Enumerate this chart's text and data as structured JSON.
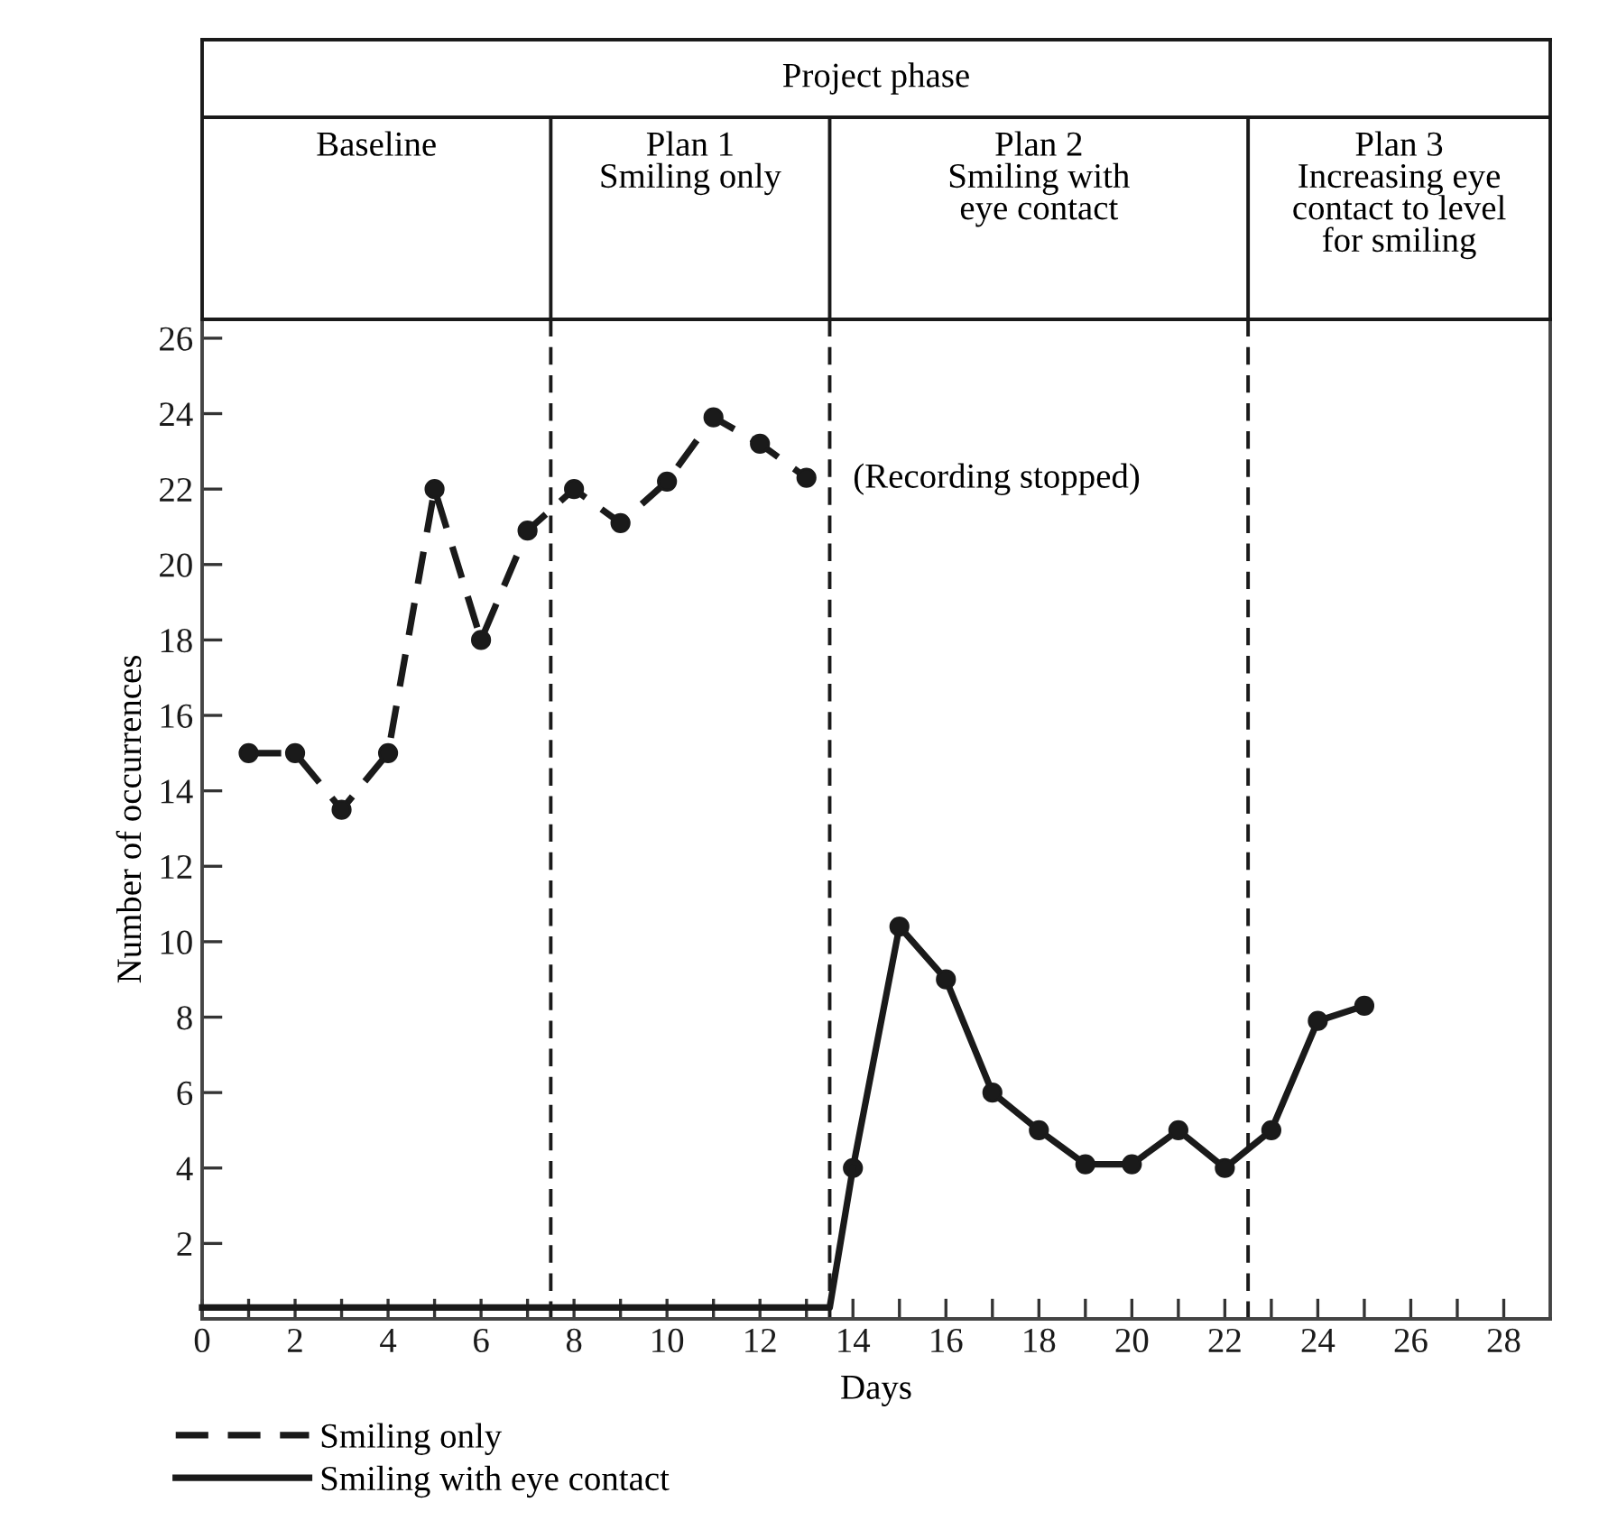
{
  "chart_data": {
    "type": "line",
    "title": "Project phase",
    "xlabel": "Days",
    "ylabel": "Number of occurrences",
    "xlim": [
      0,
      29
    ],
    "ylim": [
      0,
      26.5
    ],
    "xticks": [
      0,
      {
        "value": 1,
        "label": null
      },
      2,
      {
        "value": 3,
        "label": null
      },
      4,
      {
        "value": 5,
        "label": null
      },
      6,
      {
        "value": 7,
        "label": null
      },
      8,
      {
        "value": 9,
        "label": null
      },
      10,
      {
        "value": 11,
        "label": null
      },
      12,
      {
        "value": 13,
        "label": null
      },
      14,
      {
        "value": 15,
        "label": null
      },
      16,
      {
        "value": 17,
        "label": null
      },
      18,
      {
        "value": 19,
        "label": null
      },
      20,
      {
        "value": 21,
        "label": null
      },
      22,
      {
        "value": 23,
        "label": null
      },
      24,
      {
        "value": 25,
        "label": null
      },
      26,
      {
        "value": 27,
        "label": null
      },
      28
    ],
    "yticks": [
      2,
      4,
      6,
      8,
      10,
      12,
      14,
      16,
      18,
      20,
      22,
      24,
      26
    ],
    "grid": false,
    "legend": "bottom left",
    "series": [
      {
        "name": "Smiling only",
        "color": "#1a1a1a",
        "line_style": "dashed",
        "marker": "circle",
        "x": [
          1,
          2,
          3,
          4,
          5,
          6,
          7,
          8,
          9,
          10,
          11,
          12,
          13
        ],
        "values": [
          15,
          15,
          13.5,
          15,
          22,
          18,
          20.9,
          22,
          21.1,
          22.2,
          23.9,
          23.2,
          22.3
        ]
      },
      {
        "name": "Smiling with eye contact",
        "color": "#1a1a1a",
        "line_style": "solid",
        "marker": "circle",
        "x": [
          14,
          15,
          16,
          17,
          18,
          19,
          20,
          21,
          22,
          23,
          24,
          25
        ],
        "values": [
          4,
          10.4,
          9,
          6,
          5,
          4.1,
          4.1,
          5,
          4,
          5,
          7.9,
          8.3
        ]
      },
      {
        "color": "#1a1a1a",
        "line_style": "solid",
        "marker": "none",
        "x": [
          0,
          13.5,
          14
        ],
        "values": [
          0.3,
          0.3,
          4
        ]
      }
    ],
    "ref_lines": [
      {
        "axis": "x",
        "value": 7.5,
        "line_style": "dashed"
      },
      {
        "axis": "x",
        "value": 13.5,
        "line_style": "dashed"
      },
      {
        "axis": "x",
        "value": 22.5,
        "line_style": "dashed"
      }
    ],
    "annotations": [
      "Baseline",
      "Plan 1\nSmiling only",
      "Plan 2\nSmiling with\neye contact",
      "Plan 3\nIncreasing eye\ncontact to level\nfor smiling",
      "(Recording stopped)"
    ]
  }
}
